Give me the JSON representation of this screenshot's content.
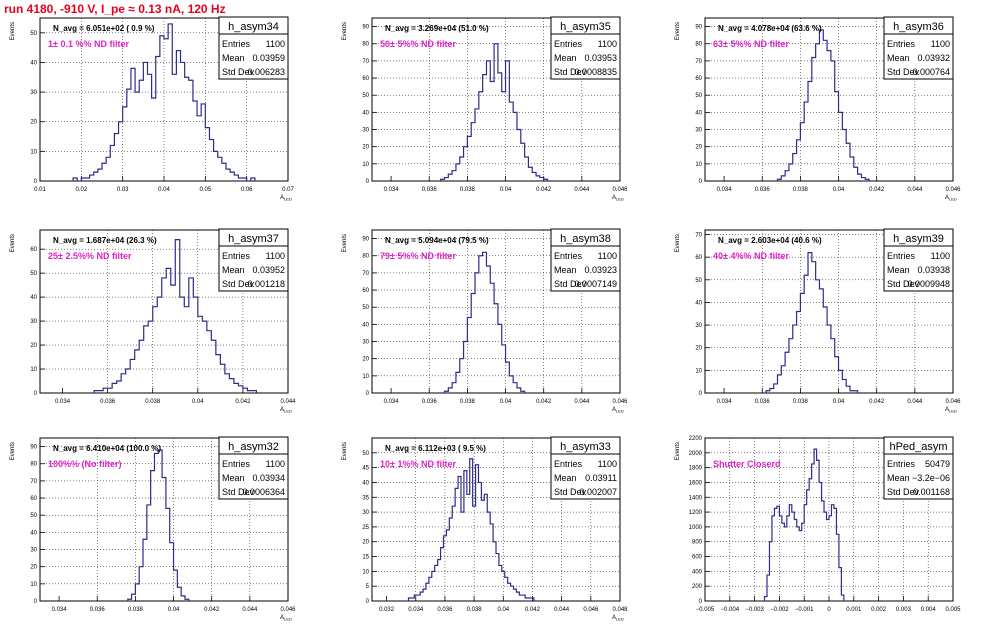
{
  "canvas_title": "run 4180,  -910 V, I_pe ≈ 0.13 nA, 120 Hz",
  "colors": {
    "title": "#e8001e",
    "hist_line": "#2c2c8c",
    "annotation": "#e020c8",
    "grid": "#000000"
  },
  "chart_data": [
    {
      "type": "histogram",
      "name": "h_asym34",
      "stats": {
        "Entries": "1100",
        "Mean": "0.03959",
        "Std Dev": "0.006283"
      },
      "navg": "N_avg = 6.051e+02 ( 0.9 %)",
      "filter_label": "1± 0.1 %% ND filter",
      "ylabel": "Events",
      "xlabel": "A_LED",
      "xlim": [
        0.01,
        0.07
      ],
      "ylim": [
        0,
        55
      ],
      "xticks": [
        0.01,
        0.02,
        0.03,
        0.04,
        0.05,
        0.06,
        0.07
      ],
      "xtick_labels": [
        "0.01",
        "0.02",
        "0.03",
        "0.04",
        "0.05",
        "0.06",
        "0.07"
      ],
      "yticks": [
        0,
        10,
        20,
        30,
        40,
        50
      ],
      "ytick_labels": [
        "0",
        "10",
        "20",
        "30",
        "40",
        "50"
      ],
      "bin_start": 0.018,
      "bin_width": 0.001,
      "values": [
        1,
        0,
        1,
        1,
        2,
        3,
        4,
        6,
        8,
        12,
        16,
        20,
        25,
        31,
        38,
        30,
        34,
        40,
        36,
        28,
        42,
        49,
        48,
        53,
        36,
        44,
        40,
        35,
        34,
        27,
        22,
        26,
        18,
        14,
        10,
        8,
        6,
        4,
        3,
        2,
        1,
        1,
        0,
        1
      ]
    },
    {
      "type": "histogram",
      "name": "h_asym35",
      "stats": {
        "Entries": "1100",
        "Mean": "0.03953",
        "Std Dev": "0.0008835"
      },
      "navg": "N_avg = 3.269e+04 (51.0 %)",
      "filter_label": "50± 5%% ND filter",
      "ylabel": "Events",
      "xlabel": "A_LED",
      "xlim": [
        0.033,
        0.046
      ],
      "ylim": [
        0,
        95
      ],
      "xticks": [
        0.034,
        0.036,
        0.038,
        0.04,
        0.042,
        0.044,
        0.046
      ],
      "xtick_labels": [
        "0.034",
        "0.036",
        "0.038",
        "0.04",
        "0.042",
        "0.044",
        "0.046"
      ],
      "yticks": [
        0,
        10,
        20,
        30,
        40,
        50,
        60,
        70,
        80,
        90
      ],
      "ytick_labels": [
        "0",
        "10",
        "20",
        "30",
        "40",
        "50",
        "60",
        "70",
        "80",
        "90"
      ],
      "bin_start": 0.0366,
      "bin_width": 0.0002,
      "values": [
        1,
        2,
        4,
        6,
        10,
        14,
        20,
        26,
        34,
        42,
        52,
        62,
        70,
        58,
        80,
        63,
        52,
        70,
        46,
        40,
        30,
        22,
        14,
        8,
        5,
        3,
        2,
        1
      ]
    },
    {
      "type": "histogram",
      "name": "h_asym36",
      "stats": {
        "Entries": "1100",
        "Mean": "0.03932",
        "Std Dev": "0.000764"
      },
      "navg": "N_avg = 4.078e+04 (63.6 %)",
      "filter_label": "63± 5%% ND filter",
      "ylabel": "Events",
      "xlabel": "A_LED",
      "xlim": [
        0.033,
        0.046
      ],
      "ylim": [
        0,
        95
      ],
      "xticks": [
        0.034,
        0.036,
        0.038,
        0.04,
        0.042,
        0.044,
        0.046
      ],
      "xtick_labels": [
        "0.034",
        "0.036",
        "0.038",
        "0.04",
        "0.042",
        "0.044",
        "0.046"
      ],
      "yticks": [
        0,
        10,
        20,
        30,
        40,
        50,
        60,
        70,
        80,
        90
      ],
      "ytick_labels": [
        "0",
        "10",
        "20",
        "30",
        "40",
        "50",
        "60",
        "70",
        "80",
        "90"
      ],
      "bin_start": 0.0368,
      "bin_width": 0.0002,
      "values": [
        1,
        3,
        6,
        10,
        16,
        24,
        34,
        46,
        58,
        72,
        80,
        88,
        82,
        76,
        70,
        52,
        40,
        30,
        22,
        14,
        8,
        4,
        2,
        1
      ]
    },
    {
      "type": "histogram",
      "name": "h_asym37",
      "stats": {
        "Entries": "1100",
        "Mean": "0.03952",
        "Std Dev": "0.001218"
      },
      "navg": "N_avg = 1.687e+04 (26.3 %)",
      "filter_label": "25± 2.5%% ND filter",
      "ylabel": "Events",
      "xlabel": "A_LED",
      "xlim": [
        0.033,
        0.044
      ],
      "ylim": [
        0,
        68
      ],
      "xticks": [
        0.034,
        0.036,
        0.038,
        0.04,
        0.042,
        0.044
      ],
      "xtick_labels": [
        "0.034",
        "0.036",
        "0.038",
        "0.04",
        "0.042",
        "0.044"
      ],
      "yticks": [
        0,
        10,
        20,
        30,
        40,
        50,
        60
      ],
      "ytick_labels": [
        "0",
        "10",
        "20",
        "30",
        "40",
        "50",
        "60"
      ],
      "bin_start": 0.0354,
      "bin_width": 0.0002,
      "values": [
        1,
        1,
        2,
        2,
        4,
        5,
        8,
        10,
        14,
        18,
        22,
        28,
        30,
        36,
        40,
        48,
        52,
        45,
        64,
        40,
        36,
        48,
        40,
        32,
        30,
        26,
        22,
        16,
        12,
        8,
        6,
        4,
        3,
        2,
        1,
        1
      ]
    },
    {
      "type": "histogram",
      "name": "h_asym38",
      "stats": {
        "Entries": "1100",
        "Mean": "0.03923",
        "Std Dev": "0.0007149"
      },
      "navg": "N_avg = 5.094e+04 (79.5 %)",
      "filter_label": "79± 5%% ND filter",
      "ylabel": "Events",
      "xlabel": "A_LED",
      "xlim": [
        0.033,
        0.046
      ],
      "ylim": [
        0,
        95
      ],
      "xticks": [
        0.034,
        0.036,
        0.038,
        0.04,
        0.042,
        0.044,
        0.046
      ],
      "xtick_labels": [
        "0.034",
        "0.036",
        "0.038",
        "0.04",
        "0.042",
        "0.044",
        "0.046"
      ],
      "yticks": [
        0,
        10,
        20,
        30,
        40,
        50,
        60,
        70,
        80,
        90
      ],
      "ytick_labels": [
        "0",
        "10",
        "20",
        "30",
        "40",
        "50",
        "60",
        "70",
        "80",
        "90"
      ],
      "bin_start": 0.0368,
      "bin_width": 0.0002,
      "values": [
        1,
        3,
        6,
        12,
        20,
        30,
        44,
        58,
        70,
        80,
        82,
        74,
        64,
        52,
        40,
        28,
        18,
        10,
        6,
        3,
        1
      ]
    },
    {
      "type": "histogram",
      "name": "h_asym39",
      "stats": {
        "Entries": "1100",
        "Mean": "0.03938",
        "Std Dev": "0.0009948"
      },
      "navg": "N_avg = 2.603e+04 (40.6 %)",
      "filter_label": "40± 4%% ND filter",
      "ylabel": "Events",
      "xlabel": "A_LED",
      "xlim": [
        0.033,
        0.046
      ],
      "ylim": [
        0,
        72
      ],
      "xticks": [
        0.034,
        0.036,
        0.038,
        0.04,
        0.042,
        0.044,
        0.046
      ],
      "xtick_labels": [
        "0.034",
        "0.036",
        "0.038",
        "0.04",
        "0.042",
        "0.044",
        "0.046"
      ],
      "yticks": [
        0,
        10,
        20,
        30,
        40,
        50,
        60,
        70
      ],
      "ytick_labels": [
        "0",
        "10",
        "20",
        "30",
        "40",
        "50",
        "60",
        "70"
      ],
      "bin_start": 0.0362,
      "bin_width": 0.0002,
      "values": [
        1,
        2,
        4,
        8,
        12,
        18,
        24,
        30,
        36,
        44,
        52,
        62,
        58,
        50,
        46,
        38,
        30,
        24,
        16,
        10,
        6,
        3,
        1,
        1
      ]
    },
    {
      "type": "histogram",
      "name": "h_asym32",
      "stats": {
        "Entries": "1100",
        "Mean": "0.03934",
        "Std Dev": "0.0006364"
      },
      "navg": "N_avg = 6.410e+04 (100.0 %)",
      "filter_label": "100%% (No filter)",
      "ylabel": "Events",
      "xlabel": "A_LED",
      "xlim": [
        0.033,
        0.046
      ],
      "ylim": [
        0,
        95
      ],
      "xticks": [
        0.034,
        0.036,
        0.038,
        0.04,
        0.042,
        0.044,
        0.046
      ],
      "xtick_labels": [
        "0.034",
        "0.036",
        "0.038",
        "0.04",
        "0.042",
        "0.044",
        "0.046"
      ],
      "yticks": [
        0,
        10,
        20,
        30,
        40,
        50,
        60,
        70,
        80,
        90
      ],
      "ytick_labels": [
        "0",
        "10",
        "20",
        "30",
        "40",
        "50",
        "60",
        "70",
        "80",
        "90"
      ],
      "bin_start": 0.0376,
      "bin_width": 0.0002,
      "values": [
        1,
        4,
        10,
        20,
        36,
        56,
        76,
        86,
        88,
        72,
        54,
        34,
        18,
        8,
        3,
        1
      ]
    },
    {
      "type": "histogram",
      "name": "h_asym33",
      "stats": {
        "Entries": "1100",
        "Mean": "0.03911",
        "Std Dev": "0.002007"
      },
      "navg": "N_avg = 6.112e+03 ( 9.5 %)",
      "filter_label": "10± 1%% ND filter",
      "ylabel": "Events",
      "xlabel": "A_LED",
      "xlim": [
        0.031,
        0.048
      ],
      "ylim": [
        0,
        55
      ],
      "xticks": [
        0.032,
        0.034,
        0.036,
        0.038,
        0.04,
        0.042,
        0.044,
        0.046,
        0.048
      ],
      "xtick_labels": [
        "0.032",
        "0.034",
        "0.036",
        "0.038",
        "0.04",
        "0.042",
        "0.044",
        "0.046",
        "0.048"
      ],
      "yticks": [
        0,
        5,
        10,
        15,
        20,
        25,
        30,
        35,
        40,
        45,
        50
      ],
      "ytick_labels": [
        "0",
        "5",
        "10",
        "15",
        "20",
        "25",
        "30",
        "35",
        "40",
        "45",
        "50"
      ],
      "bin_start": 0.0335,
      "bin_width": 0.0002,
      "values": [
        1,
        1,
        2,
        2,
        3,
        4,
        6,
        8,
        10,
        12,
        14,
        18,
        22,
        24,
        28,
        32,
        38,
        42,
        30,
        44,
        36,
        48,
        32,
        46,
        40,
        34,
        36,
        30,
        26,
        20,
        16,
        12,
        10,
        8,
        6,
        5,
        4,
        3,
        2,
        2,
        1,
        1,
        1
      ]
    },
    {
      "type": "histogram",
      "name": "hPed_asym",
      "stats": {
        "Entries": "50479",
        "Mean": "−3.2e−06",
        "Std Dev": "0.001168"
      },
      "navg": "",
      "filter_label": "Shutter Closerd",
      "ylabel": "Events",
      "xlabel": "",
      "xlim": [
        -0.005,
        0.005
      ],
      "ylim": [
        0,
        2200
      ],
      "xticks": [
        -0.005,
        -0.004,
        -0.003,
        -0.002,
        -0.001,
        0,
        0.001,
        0.002,
        0.003,
        0.004,
        0.005
      ],
      "xtick_labels": [
        "−0.005",
        "−0.004",
        "−0.003",
        "−0.002",
        "−0.001",
        "0",
        "0.001",
        "0.002",
        "0.003",
        "0.004",
        "0.005"
      ],
      "yticks": [
        0,
        200,
        400,
        600,
        800,
        1000,
        1200,
        1400,
        1600,
        1800,
        2000,
        2200
      ],
      "ytick_labels": [
        "0",
        "200",
        "400",
        "600",
        "800",
        "1000",
        "1200",
        "1400",
        "1600",
        "1800",
        "2000",
        "2200"
      ],
      "bin_start": -0.0026,
      "bin_width": 0.0001,
      "values": [
        60,
        350,
        800,
        1150,
        1250,
        1280,
        1150,
        1050,
        1000,
        1150,
        1300,
        1200,
        1100,
        1000,
        950,
        1050,
        1300,
        1500,
        1650,
        1850,
        2050,
        1900,
        1600,
        1350,
        1200,
        1100,
        1150,
        1300,
        1250,
        900,
        450,
        80
      ]
    }
  ]
}
